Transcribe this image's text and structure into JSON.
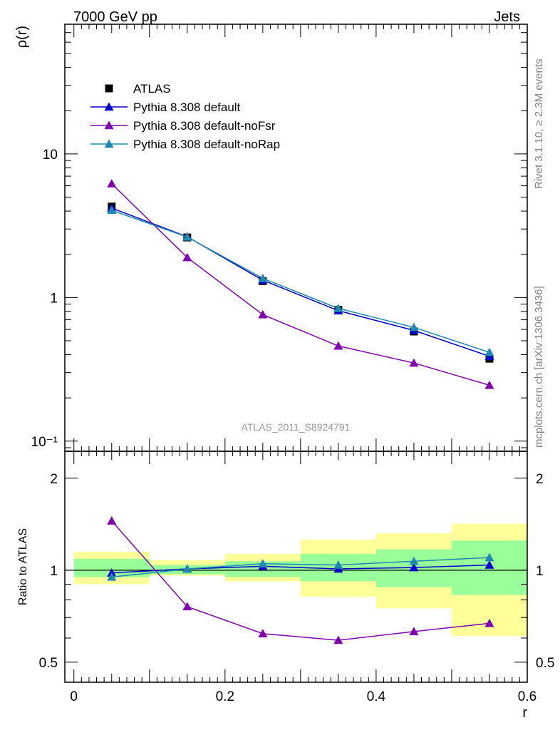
{
  "header": {
    "left": "7000 GeV pp",
    "right": "Jets"
  },
  "side_labels": {
    "rivet": "Rivet 3.1.10, ≥ 2.3M events",
    "mcplots": "mcplots.cern.ch [arXiv:1306.3436]"
  },
  "analysis_label": "ATLAS_2011_S8924791",
  "colors": {
    "atlas": "#000000",
    "default": "#0000cc",
    "noFsr": "#8000b0",
    "noRap": "#1f88b0",
    "band_inner": "#99ff99",
    "band_outer": "#ffff99"
  },
  "chart_data": [
    {
      "type": "line",
      "ylabel": "ρ(r)",
      "xlabel": "",
      "yscale": "log",
      "ylim": [
        0.085,
        80
      ],
      "xlim": [
        -0.012,
        0.6
      ],
      "ytick_labels": [
        {
          "value": 10,
          "label": "10"
        },
        {
          "value": 1,
          "label": "1"
        },
        {
          "value": 0.1,
          "label": "10⁻¹"
        }
      ],
      "legend_position": "top-left",
      "x": [
        0.05,
        0.15,
        0.25,
        0.35,
        0.45,
        0.55
      ],
      "series": [
        {
          "name": "ATLAS",
          "marker": "square",
          "color": "#000000",
          "values": [
            4.3,
            2.62,
            1.3,
            0.82,
            0.58,
            0.375
          ]
        },
        {
          "name": "Pythia 8.308 default",
          "marker": "triangle",
          "color": "#0000cc",
          "values": [
            4.2,
            2.65,
            1.32,
            0.81,
            0.59,
            0.39
          ]
        },
        {
          "name": "Pythia 8.308 default-noFsr",
          "marker": "triangle",
          "color": "#8000b0",
          "values": [
            6.2,
            1.9,
            0.76,
            0.46,
            0.35,
            0.245
          ]
        },
        {
          "name": "Pythia 8.308 default-noRap",
          "marker": "triangle",
          "color": "#1f88b0",
          "values": [
            4.05,
            2.64,
            1.36,
            0.84,
            0.62,
            0.415
          ]
        }
      ]
    },
    {
      "type": "line",
      "ylabel": "Ratio to ATLAS",
      "xlabel": "r",
      "yscale": "log",
      "ylim": [
        0.43,
        2.45
      ],
      "xlim": [
        -0.012,
        0.6
      ],
      "ytick_labels": [
        {
          "value": 2,
          "label": "2"
        },
        {
          "value": 1,
          "label": "1"
        },
        {
          "value": 0.5,
          "label": "0.5"
        }
      ],
      "xtick_labels": [
        {
          "value": 0,
          "label": "0"
        },
        {
          "value": 0.2,
          "label": "0.2"
        },
        {
          "value": 0.4,
          "label": "0.4"
        },
        {
          "value": 0.6,
          "label": "0.6"
        }
      ],
      "bins": [
        {
          "x0": 0.0,
          "x1": 0.1,
          "inner": [
            0.95,
            1.09
          ],
          "outer": [
            0.9,
            1.15
          ]
        },
        {
          "x0": 0.1,
          "x1": 0.2,
          "inner": [
            0.97,
            1.04
          ],
          "outer": [
            0.96,
            1.08
          ]
        },
        {
          "x0": 0.2,
          "x1": 0.3,
          "inner": [
            0.95,
            1.07
          ],
          "outer": [
            0.92,
            1.13
          ]
        },
        {
          "x0": 0.3,
          "x1": 0.4,
          "inner": [
            0.92,
            1.13
          ],
          "outer": [
            0.82,
            1.26
          ]
        },
        {
          "x0": 0.4,
          "x1": 0.5,
          "inner": [
            0.88,
            1.17
          ],
          "outer": [
            0.75,
            1.32
          ]
        },
        {
          "x0": 0.5,
          "x1": 0.6,
          "inner": [
            0.83,
            1.25
          ],
          "outer": [
            0.61,
            1.42
          ]
        }
      ],
      "x": [
        0.05,
        0.15,
        0.25,
        0.35,
        0.45,
        0.55
      ],
      "series": [
        {
          "name": "Pythia 8.308 default",
          "color": "#0000cc",
          "values": [
            0.98,
            1.01,
            1.03,
            1.01,
            1.02,
            1.04
          ]
        },
        {
          "name": "Pythia 8.308 default-noFsr",
          "color": "#8000b0",
          "values": [
            1.45,
            0.76,
            0.62,
            0.59,
            0.63,
            0.67
          ]
        },
        {
          "name": "Pythia 8.308 default-noRap",
          "color": "#1f88b0",
          "values": [
            0.95,
            1.01,
            1.05,
            1.04,
            1.07,
            1.1
          ]
        }
      ]
    }
  ]
}
